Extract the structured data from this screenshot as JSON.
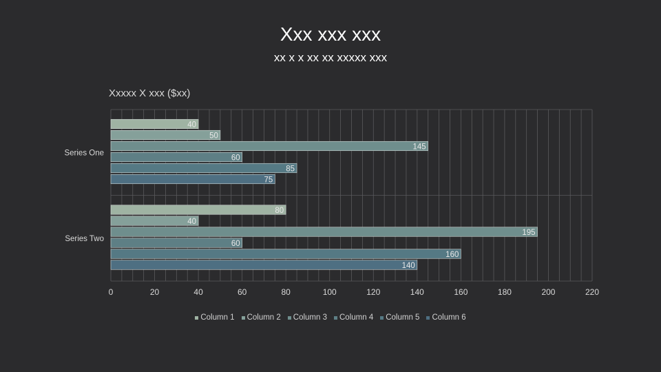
{
  "slide": {
    "title": "Xxx xxx xxx",
    "subtitle": "xx x x xx xx xxxxx xxx"
  },
  "chart_data": {
    "type": "bar",
    "orientation": "horizontal",
    "title": "Xxxxx X xxx ($xx)",
    "categories": [
      "Series One",
      "Series Two"
    ],
    "series": [
      {
        "name": "Column 1",
        "color": "#9fb3a3",
        "values": [
          40,
          80
        ]
      },
      {
        "name": "Column 2",
        "color": "#85a09a",
        "values": [
          50,
          40
        ]
      },
      {
        "name": "Column 3",
        "color": "#6f8e8d",
        "values": [
          145,
          195
        ]
      },
      {
        "name": "Column 4",
        "color": "#5e7f85",
        "values": [
          60,
          60
        ]
      },
      {
        "name": "Column 5",
        "color": "#557984",
        "values": [
          85,
          160
        ]
      },
      {
        "name": "Column 6",
        "color": "#4e6f82",
        "values": [
          75,
          140
        ]
      }
    ],
    "xlim": [
      0,
      220
    ],
    "x_ticks": [
      "0",
      "20",
      "40",
      "60",
      "80",
      "100",
      "120",
      "140",
      "160",
      "180",
      "200",
      "220"
    ],
    "x_minor_step": 5,
    "grid": true,
    "legend_position": "bottom",
    "data_labels": true
  }
}
